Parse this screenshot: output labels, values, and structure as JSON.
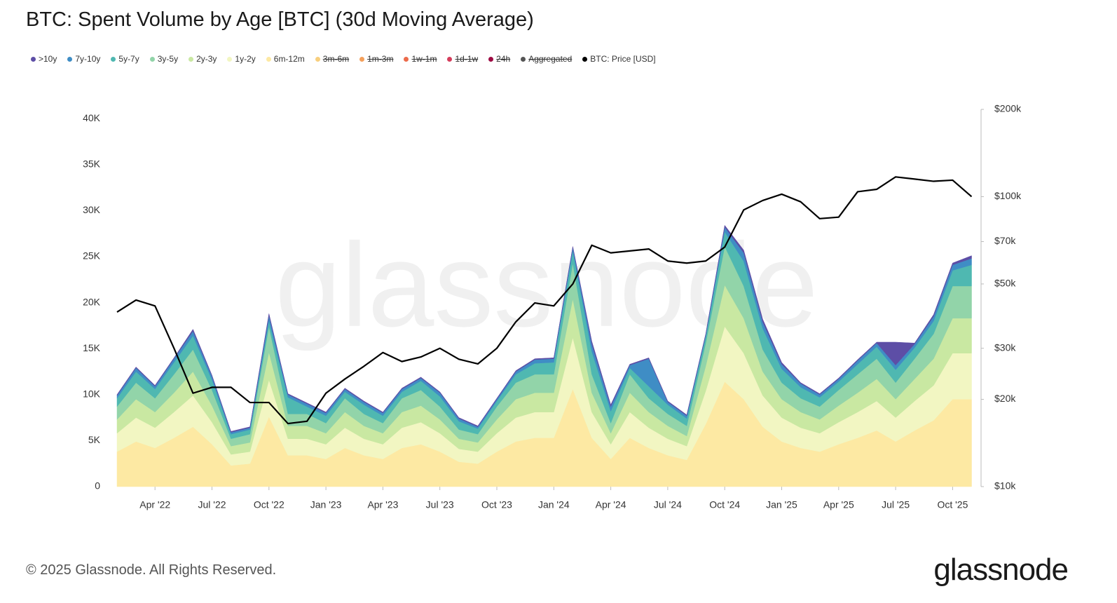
{
  "chart_data": {
    "type": "stacked_area",
    "title": "BTC: Spent Volume by Age [BTC] (30d Moving Average)",
    "watermark": "glassnode",
    "footer": "© 2025 Glassnode. All Rights Reserved.",
    "logo": "glassnode",
    "categories": [
      null,
      null,
      "Apr '22",
      null,
      null,
      "Jul '22",
      null,
      null,
      "Oct '22",
      null,
      null,
      "Jan '23",
      null,
      null,
      "Apr '23",
      null,
      null,
      "Jul '23",
      null,
      null,
      "Oct '23",
      null,
      null,
      "Jan '24",
      null,
      null,
      "Apr '24",
      null,
      null,
      "Jul '24",
      null,
      null,
      "Oct '24",
      null,
      null,
      "Jan '25",
      null,
      null,
      "Apr '25",
      null,
      null,
      "Jul '25",
      null,
      null,
      "Oct '25",
      null
    ],
    "ylim": [
      0,
      41000
    ],
    "yticks": [
      0,
      {
        "value": 5000,
        "label": "5K"
      },
      {
        "value": 10000,
        "label": "10K"
      },
      {
        "value": 15000,
        "label": "15K"
      },
      {
        "value": 20000,
        "label": "20K"
      },
      {
        "value": 25000,
        "label": "25K"
      },
      {
        "value": 30000,
        "label": "30K"
      },
      {
        "value": 35000,
        "label": "35K"
      },
      {
        "value": 40000,
        "label": "40K"
      }
    ],
    "y2lim": [
      10000,
      200000
    ],
    "y2log": true,
    "y2ticks": [
      {
        "value": 10000,
        "label": "$10k"
      },
      {
        "value": 20000,
        "label": "$20k"
      },
      {
        "value": 30000,
        "label": "$30k"
      },
      {
        "value": 50000,
        "label": "$50k"
      },
      {
        "value": 70000,
        "label": "$70k"
      },
      {
        "value": 100000,
        "label": "$100k"
      },
      {
        "value": 200000,
        "label": "$200k"
      }
    ],
    "series": [
      {
        "name": ">10y",
        "color": "#5d4ea6",
        "values": [
          100,
          100,
          100,
          100,
          200,
          100,
          100,
          100,
          200,
          100,
          100,
          100,
          100,
          100,
          100,
          100,
          100,
          100,
          100,
          100,
          100,
          100,
          100,
          100,
          100,
          300,
          200,
          100,
          100,
          100,
          100,
          100,
          200,
          300,
          300,
          200,
          100,
          100,
          100,
          100,
          100,
          2500,
          100,
          200,
          200,
          300
        ]
      },
      {
        "name": "7y-10y",
        "color": "#3f8dc5",
        "values": [
          300,
          400,
          300,
          400,
          500,
          400,
          200,
          200,
          600,
          300,
          300,
          300,
          300,
          300,
          300,
          300,
          300,
          400,
          300,
          200,
          200,
          300,
          400,
          400,
          400,
          800,
          500,
          300,
          3000,
          300,
          300,
          200,
          500,
          900,
          700,
          500,
          400,
          300,
          300,
          400,
          400,
          500,
          400,
          500,
          600,
          700
        ]
      },
      {
        "name": "5y-7y",
        "color": "#4fb8b1",
        "values": [
          900,
          1200,
          1000,
          1300,
          1500,
          1100,
          500,
          500,
          600,
          1800,
          800,
          800,
          700,
          1000,
          800,
          700,
          1000,
          1100,
          900,
          600,
          600,
          900,
          1200,
          1300,
          1300,
          2500,
          1300,
          700,
          1300,
          1000,
          800,
          700,
          1600,
          2700,
          2300,
          1500,
          1200,
          1000,
          900,
          1100,
          1300,
          1400,
          1200,
          1400,
          1700,
          2300
        ]
      },
      {
        "name": "3y-5y",
        "color": "#92d4a9",
        "values": [
          1400,
          1800,
          1500,
          2000,
          2400,
          1700,
          800,
          900,
          2800,
          1300,
          1300,
          1100,
          1500,
          1300,
          1100,
          1500,
          1700,
          1400,
          1000,
          900,
          1400,
          1800,
          2000,
          2000,
          3900,
          2000,
          1100,
          2000,
          1500,
          1300,
          1100,
          2500,
          4200,
          3500,
          2400,
          1800,
          1500,
          1400,
          1700,
          2000,
          2200,
          1800,
          2200,
          2700,
          3500,
          3500
        ]
      },
      {
        "name": "2y-3y",
        "color": "#c9e8a2",
        "values": [
          1500,
          2000,
          1700,
          2100,
          2600,
          1800,
          900,
          1000,
          3000,
          1400,
          1400,
          1200,
          1700,
          1400,
          1200,
          1700,
          1800,
          1500,
          1100,
          1000,
          1500,
          2000,
          2100,
          2100,
          4200,
          2100,
          1200,
          2100,
          1700,
          1400,
          1100,
          2700,
          4500,
          3800,
          2600,
          2000,
          1700,
          1500,
          1800,
          2100,
          2400,
          2000,
          2400,
          2900,
          3800,
          3800
        ]
      },
      {
        "name": "1y-2y",
        "color": "#f2f6c2",
        "values": [
          2000,
          2600,
          2200,
          2800,
          3400,
          2400,
          1200,
          1300,
          4000,
          1800,
          1800,
          1600,
          2200,
          1800,
          1600,
          2200,
          2400,
          2000,
          1400,
          1300,
          2000,
          2600,
          2800,
          2800,
          5600,
          2800,
          1600,
          2800,
          2200,
          1800,
          1500,
          3600,
          6000,
          5000,
          3400,
          2600,
          2200,
          2000,
          2400,
          2800,
          3200,
          2600,
          3200,
          3800,
          5000,
          5000
        ]
      },
      {
        "name": "6m-12m",
        "color": "#fde9a3",
        "values": [
          3800,
          4900,
          4200,
          5300,
          6500,
          4600,
          2300,
          2500,
          7600,
          3400,
          3400,
          3000,
          4200,
          3400,
          3000,
          4200,
          4600,
          3800,
          2700,
          2500,
          3800,
          4900,
          5300,
          5300,
          10600,
          5300,
          3000,
          5300,
          4200,
          3400,
          2900,
          6800,
          11400,
          9500,
          6500,
          4900,
          4200,
          3800,
          4600,
          5300,
          6100,
          4900,
          6100,
          7200,
          9500,
          9500
        ]
      },
      {
        "name": "3m-6m",
        "color": "#f8cf7e",
        "hidden": true
      },
      {
        "name": "1m-3m",
        "color": "#f4a05b",
        "hidden": true
      },
      {
        "name": "1w-1m",
        "color": "#ec6b4b",
        "hidden": true
      },
      {
        "name": "1d-1w",
        "color": "#d53d5b",
        "hidden": true
      },
      {
        "name": "24h",
        "color": "#9d0b43",
        "hidden": true
      },
      {
        "name": "Aggregated",
        "color": "#555555",
        "hidden": true
      },
      {
        "name": "BTC: Price [USD]",
        "color": "#000000",
        "axis": "y2",
        "type": "line",
        "values": [
          40000,
          44000,
          42000,
          30000,
          21000,
          22000,
          22000,
          19500,
          19500,
          16500,
          16800,
          21000,
          23500,
          26000,
          29000,
          27000,
          28000,
          30000,
          27500,
          26500,
          30000,
          37000,
          43000,
          42000,
          50000,
          68000,
          64000,
          65000,
          66000,
          60000,
          59000,
          60000,
          67000,
          90000,
          97000,
          102000,
          96000,
          84000,
          85000,
          104000,
          106000,
          117000,
          115000,
          113000,
          114000,
          100000
        ]
      }
    ]
  }
}
